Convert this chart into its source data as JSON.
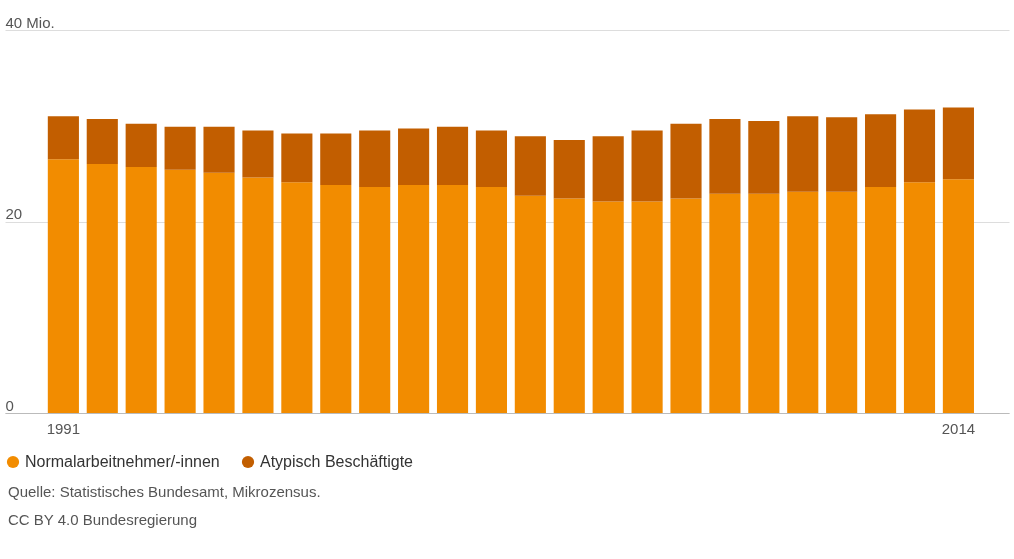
{
  "chart_data": {
    "type": "bar",
    "stacked": true,
    "categories": [
      "1991",
      null,
      null,
      null,
      null,
      null,
      null,
      null,
      null,
      null,
      null,
      null,
      null,
      null,
      null,
      null,
      null,
      null,
      null,
      null,
      null,
      null,
      null,
      "2014"
    ],
    "series": [
      {
        "name": "Normalarbeitnehmer/-innen",
        "color": "#f28c00",
        "values": [
          26.5,
          26.0,
          25.7,
          25.4,
          25.1,
          24.6,
          24.1,
          23.8,
          23.6,
          23.8,
          23.8,
          23.6,
          22.7,
          22.4,
          22.1,
          22.1,
          22.4,
          22.9,
          22.9,
          23.1,
          23.1,
          23.6,
          24.1,
          24.4
        ]
      },
      {
        "name": "Atypisch Beschäftigte",
        "color": "#c25e00",
        "values": [
          4.5,
          4.7,
          4.5,
          4.5,
          4.8,
          4.9,
          5.1,
          5.4,
          5.9,
          5.9,
          6.1,
          5.9,
          6.2,
          6.1,
          6.8,
          7.4,
          7.8,
          7.8,
          7.6,
          7.9,
          7.8,
          7.6,
          7.6,
          7.5
        ]
      }
    ],
    "ylim": [
      0,
      40
    ],
    "yticks": [
      0,
      20,
      {
        "value": 40,
        "label": "40 Mio."
      }
    ],
    "grid": "y",
    "legend": "bottom",
    "annotations": [
      "Quelle: Statistisches Bundesamt, Mikrozensus.",
      "CC BY 4.0 Bundesregierung"
    ]
  }
}
